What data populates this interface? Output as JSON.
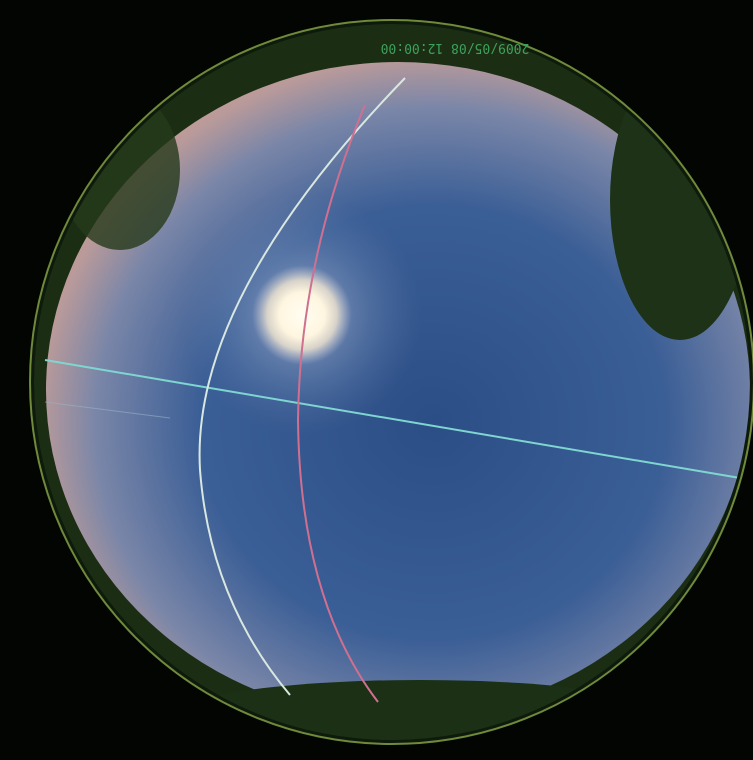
{
  "overlay": {
    "timestamp": "2009/05/08 12:00:00"
  }
}
